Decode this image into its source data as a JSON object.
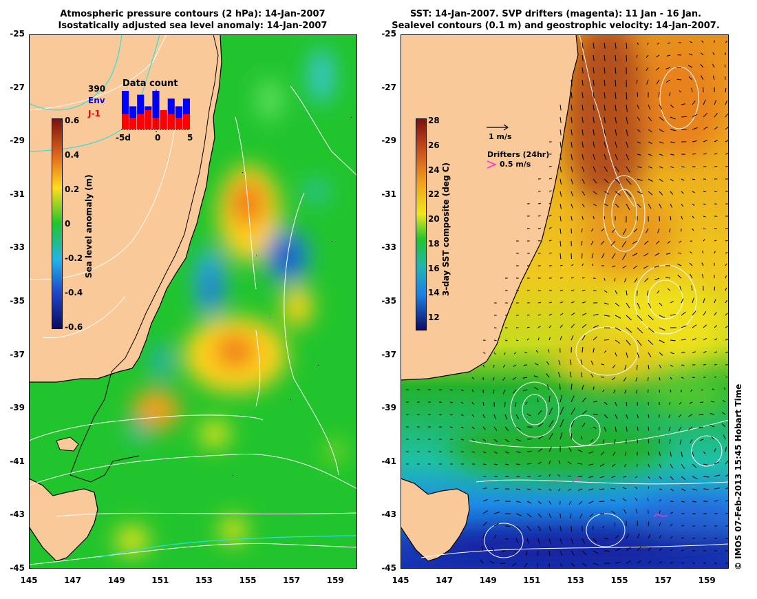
{
  "left_panel": {
    "title_line1": "Atmospheric pressure contours (2 hPa): 14-Jan-2007",
    "title_line2": "Isostatically adjusted sea level anomaly: 14-Jan-2007",
    "colorbar": {
      "label": "Sea level anomaly (m)",
      "ticks": [
        "0.6",
        "0.4",
        "0.2",
        "0",
        "-0.2",
        "-0.4",
        "-0.6"
      ]
    },
    "inset": {
      "title": "Data count",
      "count": "390",
      "series1": "Env",
      "series2": "J-1",
      "xticks": [
        "-5d",
        "0",
        "5"
      ],
      "env_values": [
        1.0,
        0.6,
        0.9,
        0.6,
        1.0,
        0.5,
        0.8,
        0.6,
        0.8
      ],
      "j1_values": [
        0.4,
        0.3,
        0.4,
        0.5,
        0.3,
        0.5,
        0.4,
        0.3,
        0.4
      ]
    }
  },
  "right_panel": {
    "title_line1": "SST: 14-Jan-2007. SVP drifters (magenta): 11 Jan - 16 Jan.",
    "title_line2": "Sealevel contours (0.1 m) and geostrophic velocity: 14-Jan-2007.",
    "colorbar": {
      "label": "3-day SST composite (deg C)",
      "ticks": [
        "28",
        "26",
        "24",
        "22",
        "20",
        "18",
        "16",
        "14",
        "12"
      ]
    },
    "velocity_key": "1 m/s",
    "drifter_key_title": "Drifters (24hr)",
    "drifter_key_speed": "0.5 m/s"
  },
  "axes": {
    "lat_ticks": [
      "-25",
      "-27",
      "-29",
      "-31",
      "-33",
      "-35",
      "-37",
      "-39",
      "-41",
      "-43",
      "-45"
    ],
    "lon_ticks": [
      "145",
      "147",
      "149",
      "151",
      "153",
      "155",
      "157",
      "159"
    ],
    "lat_range": [
      -45,
      -25
    ],
    "lon_range": [
      145,
      160
    ]
  },
  "credit": "© IMOS 07-Feb-2013 15:45 Hobart Time",
  "colors": {
    "land": "#f9c99a",
    "ocean_green": "#22c42e",
    "coast": "#000000",
    "contour_white": "#ffffff",
    "contour_cyan": "#2ee0e0",
    "drifter": "#ff33cc",
    "inset_env": "#0000ff",
    "inset_j1": "#ff0000"
  }
}
